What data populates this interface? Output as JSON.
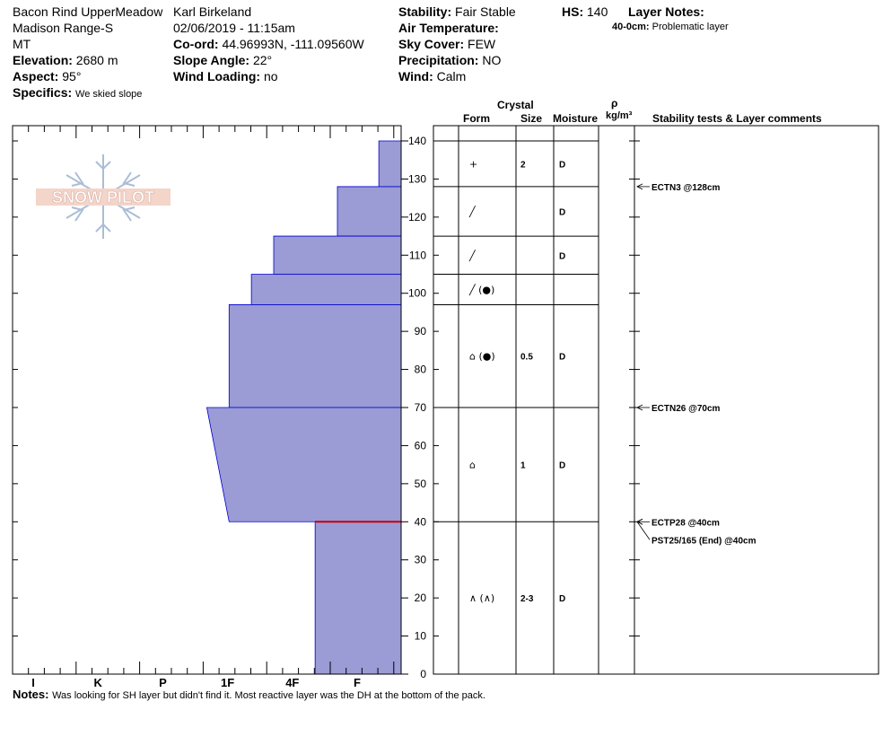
{
  "header": {
    "location": "Bacon Rind UpperMeadow",
    "range": "Madison Range-S",
    "state": "MT",
    "elevation_label": "Elevation:",
    "elevation_value": "2680 m",
    "aspect_label": "Aspect:",
    "aspect_value": "95°",
    "specifics_label": "Specifics:",
    "specifics_value": "We skied slope",
    "observer": "Karl Birkeland",
    "datetime": "02/06/2019 - 11:15am",
    "coord_label": "Co-ord:",
    "coord_value": "44.96993N, -111.09560W",
    "slope_label": "Slope Angle:",
    "slope_value": "22°",
    "windload_label": "Wind Loading:",
    "windload_value": "no",
    "stability_label": "Stability:",
    "stability_value": "Fair Stable",
    "airtemp_label": "Air Temperature:",
    "airtemp_value": "",
    "sky_label": "Sky Cover:",
    "sky_value": "FEW",
    "precip_label": "Precipitation:",
    "precip_value": "NO",
    "wind_label": "Wind:",
    "wind_value": "Calm",
    "hs_label": "HS:",
    "hs_value": "140",
    "layer_notes_label": "Layer Notes:",
    "layer_note_depth": "40-0cm:",
    "layer_note_text": "Problematic layer"
  },
  "logo": {
    "text": "SNOW PILOT"
  },
  "table_headers": {
    "crystal": "Crystal",
    "form": "Form",
    "size": "Size",
    "moisture": "Moisture",
    "rho": "ρ",
    "density": "kg/m³",
    "stability": "Stability tests & Layer comments"
  },
  "notes": {
    "label": "Notes:",
    "text": "Was looking for SH layer but didn't find it.  Most reactive layer was the DH at the bottom of the pack."
  },
  "chart_data": {
    "type": "hand-hardness-profile",
    "hs_cm": 140,
    "ylim": [
      0,
      140
    ],
    "y_ticks": [
      0,
      10,
      20,
      30,
      40,
      50,
      60,
      70,
      80,
      90,
      100,
      110,
      120,
      130,
      140
    ],
    "hardness_ticks": [
      "I",
      "K",
      "P",
      "1F",
      "4F",
      "F"
    ],
    "hardness_scale": [
      "F",
      "4F",
      "1F",
      "P",
      "K",
      "I"
    ],
    "layers": [
      {
        "top": 140,
        "bottom": 128,
        "hardness_top": "F-",
        "hardness_bottom": "F-",
        "hardness_value_top": 0.35,
        "hardness_value_bottom": 0.35
      },
      {
        "top": 128,
        "bottom": 115,
        "hardness_top": "F+",
        "hardness_bottom": "F+",
        "hardness_value_top": 1.0,
        "hardness_value_bottom": 1.0
      },
      {
        "top": 115,
        "bottom": 105,
        "hardness_top": "4F+",
        "hardness_bottom": "4F+",
        "hardness_value_top": 2.0,
        "hardness_value_bottom": 2.0
      },
      {
        "top": 105,
        "bottom": 97,
        "hardness_top": "1F-",
        "hardness_bottom": "1F-",
        "hardness_value_top": 2.35,
        "hardness_value_bottom": 2.35
      },
      {
        "top": 97,
        "bottom": 70,
        "hardness_top": "1F",
        "hardness_bottom": "1F",
        "hardness_value_top": 2.7,
        "hardness_value_bottom": 2.7
      },
      {
        "top": 70,
        "bottom": 40,
        "hardness_top": "1F+",
        "hardness_bottom": "1F",
        "hardness_value_top": 3.05,
        "hardness_value_bottom": 2.7
      },
      {
        "top": 40,
        "bottom": 0,
        "hardness_top": "4F-",
        "hardness_bottom": "4F-",
        "hardness_value_top": 1.35,
        "hardness_value_bottom": 1.35
      }
    ],
    "boundaries": [
      140,
      128,
      115,
      105,
      97,
      70,
      40,
      0
    ],
    "red_line_depth": 40,
    "crystals": [
      {
        "center": 134,
        "form": "+",
        "size": "2",
        "moisture": "D"
      },
      {
        "center": 121.5,
        "form": "╱",
        "size": "",
        "moisture": "D"
      },
      {
        "center": 110,
        "form": "╱",
        "size": "",
        "moisture": "D"
      },
      {
        "center": 101,
        "form": "╱ (●)",
        "size": "",
        "moisture": ""
      },
      {
        "center": 83.5,
        "form": "⌂ (●)",
        "size": "0.5",
        "moisture": "D"
      },
      {
        "center": 55,
        "form": "⌂",
        "size": "1",
        "moisture": "D"
      },
      {
        "center": 20,
        "form": "∧ (∧)",
        "size": "2-3",
        "moisture": "D"
      }
    ],
    "stability_tests": [
      {
        "depth": 128,
        "text": "ECTN3 @128cm"
      },
      {
        "depth": 70,
        "text": "ECTN26 @70cm"
      },
      {
        "depth": 40,
        "text": "ECTP28 @40cm"
      },
      {
        "depth": 40,
        "text": "PST25/165 (End) @40cm"
      }
    ],
    "fill_color": "#9b9bd6",
    "edge_color": "#0000cc",
    "red_color": "#cc0000"
  }
}
